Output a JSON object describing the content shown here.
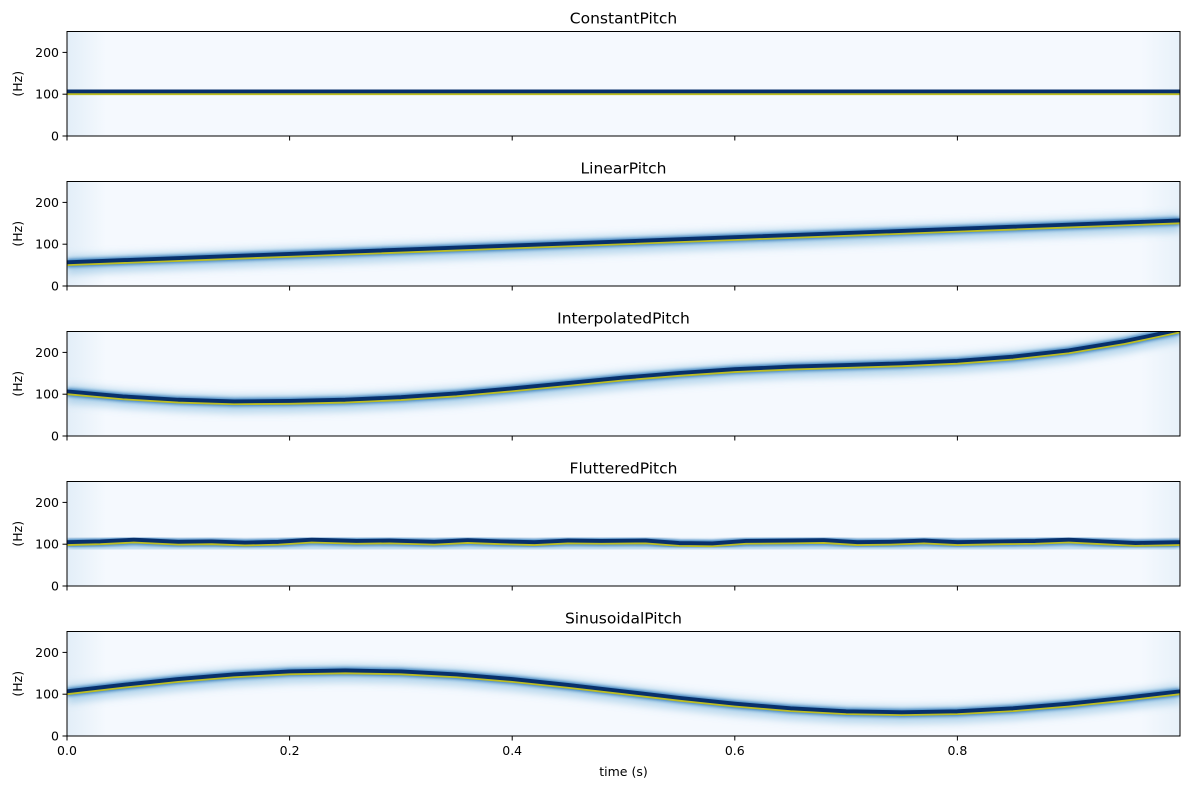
{
  "chart_data": [
    {
      "type": "heatmap",
      "title": "ConstantPitch",
      "ylabel": "(Hz)",
      "xlim": [
        0,
        1
      ],
      "ylim": [
        0,
        250
      ],
      "yticks": [
        0,
        100,
        200
      ],
      "xtick_labels_shown": false,
      "colormap": "Blues",
      "curve_color": "#bcbd22",
      "series": [
        {
          "x": [
            0,
            0.1,
            0.2,
            0.3,
            0.4,
            0.5,
            0.6,
            0.7,
            0.8,
            0.9,
            1.0
          ],
          "y": [
            100,
            100,
            100,
            100,
            100,
            100,
            100,
            100,
            100,
            100,
            100
          ]
        }
      ]
    },
    {
      "type": "heatmap",
      "title": "LinearPitch",
      "ylabel": "(Hz)",
      "xlim": [
        0,
        1
      ],
      "ylim": [
        0,
        250
      ],
      "yticks": [
        0,
        100,
        200
      ],
      "xtick_labels_shown": false,
      "colormap": "Blues",
      "curve_color": "#bcbd22",
      "series": [
        {
          "x": [
            0,
            0.2,
            0.4,
            0.6,
            0.8,
            1.0
          ],
          "y": [
            50,
            70,
            90,
            110,
            130,
            150
          ]
        }
      ]
    },
    {
      "type": "heatmap",
      "title": "InterpolatedPitch",
      "ylabel": "(Hz)",
      "xlim": [
        0,
        1
      ],
      "ylim": [
        0,
        250
      ],
      "yticks": [
        0,
        100,
        200
      ],
      "xtick_labels_shown": false,
      "colormap": "Blues",
      "curve_color": "#bcbd22",
      "series": [
        {
          "x": [
            0,
            0.05,
            0.1,
            0.15,
            0.2,
            0.25,
            0.3,
            0.35,
            0.4,
            0.45,
            0.5,
            0.55,
            0.6,
            0.65,
            0.7,
            0.75,
            0.8,
            0.85,
            0.9,
            0.95,
            1.0
          ],
          "y": [
            100,
            88,
            80,
            76,
            77,
            80,
            86,
            95,
            107,
            120,
            133,
            144,
            153,
            159,
            163,
            167,
            173,
            183,
            198,
            220,
            248
          ]
        }
      ]
    },
    {
      "type": "heatmap",
      "title": "FlutteredPitch",
      "ylabel": "(Hz)",
      "xlim": [
        0,
        1
      ],
      "ylim": [
        0,
        250
      ],
      "yticks": [
        0,
        100,
        200
      ],
      "xtick_labels_shown": false,
      "colormap": "Blues",
      "curve_color": "#bcbd22",
      "series": [
        {
          "x": [
            0,
            0.03,
            0.06,
            0.1,
            0.13,
            0.16,
            0.19,
            0.22,
            0.26,
            0.29,
            0.33,
            0.36,
            0.39,
            0.42,
            0.45,
            0.48,
            0.52,
            0.55,
            0.58,
            0.61,
            0.65,
            0.68,
            0.71,
            0.74,
            0.77,
            0.8,
            0.84,
            0.87,
            0.9,
            0.93,
            0.96,
            1.0
          ],
          "y": [
            98,
            100,
            104,
            99,
            100,
            97,
            99,
            104,
            101,
            102,
            99,
            103,
            100,
            98,
            102,
            101,
            102,
            96,
            95,
            101,
            102,
            103,
            98,
            99,
            102,
            98,
            100,
            101,
            104,
            100,
            96,
            98
          ]
        }
      ]
    },
    {
      "type": "heatmap",
      "title": "SinusoidalPitch",
      "ylabel": "(Hz)",
      "xlabel": "time (s)",
      "xlim": [
        0,
        1
      ],
      "ylim": [
        0,
        250
      ],
      "yticks": [
        0,
        100,
        200
      ],
      "xticks": [
        0.0,
        0.2,
        0.4,
        0.6,
        0.8
      ],
      "xtick_labels": [
        "0.0",
        "0.2",
        "0.4",
        "0.6",
        "0.8"
      ],
      "xtick_labels_shown": true,
      "colormap": "Blues",
      "curve_color": "#bcbd22",
      "series": [
        {
          "x": [
            0,
            0.05,
            0.1,
            0.15,
            0.2,
            0.25,
            0.3,
            0.35,
            0.4,
            0.45,
            0.5,
            0.55,
            0.6,
            0.65,
            0.7,
            0.75,
            0.8,
            0.85,
            0.9,
            0.95,
            1.0
          ],
          "y": [
            100,
            115.5,
            129.4,
            140.5,
            147.6,
            150,
            147.6,
            140.5,
            129.4,
            115.5,
            100,
            84.5,
            70.6,
            59.5,
            52.4,
            50,
            52.4,
            59.5,
            70.6,
            84.5,
            100
          ]
        }
      ]
    }
  ]
}
